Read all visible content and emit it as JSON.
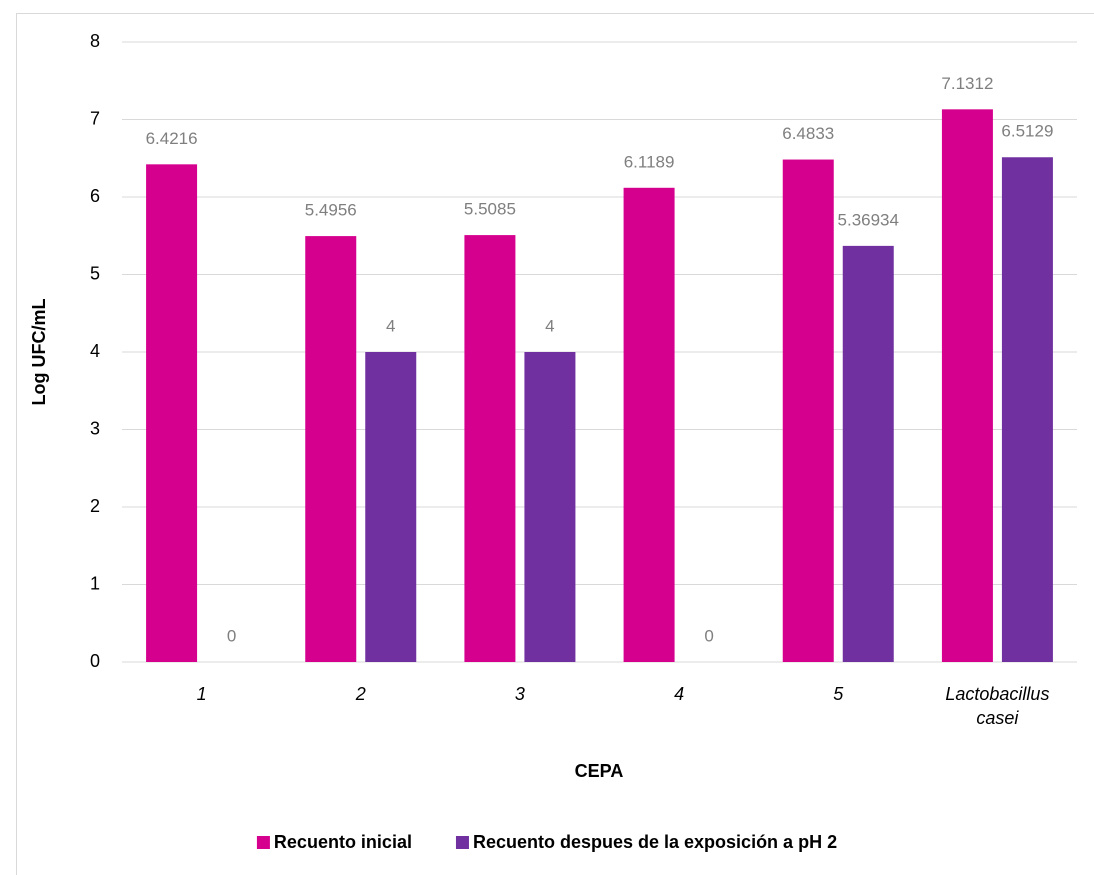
{
  "chart_data": {
    "type": "bar",
    "categories": [
      "1",
      "2",
      "3",
      "4",
      "5",
      "Lactobacillus casei"
    ],
    "series": [
      {
        "name": "Recuento inicial",
        "color": "#d6008f",
        "values": [
          6.4216,
          5.4956,
          5.5085,
          6.1189,
          6.4833,
          7.1312
        ]
      },
      {
        "name": "Recuento despues de la exposición a pH 2",
        "color": "#7030a0",
        "values": [
          0,
          4,
          4,
          0,
          5.36934,
          6.5129
        ]
      }
    ],
    "xlabel": "CEPA",
    "ylabel": "Log UFC/mL",
    "ylim": [
      0,
      8
    ],
    "yticks": [
      0,
      1,
      2,
      3,
      4,
      5,
      6,
      7,
      8
    ],
    "grid": true,
    "legend": "bottom"
  }
}
